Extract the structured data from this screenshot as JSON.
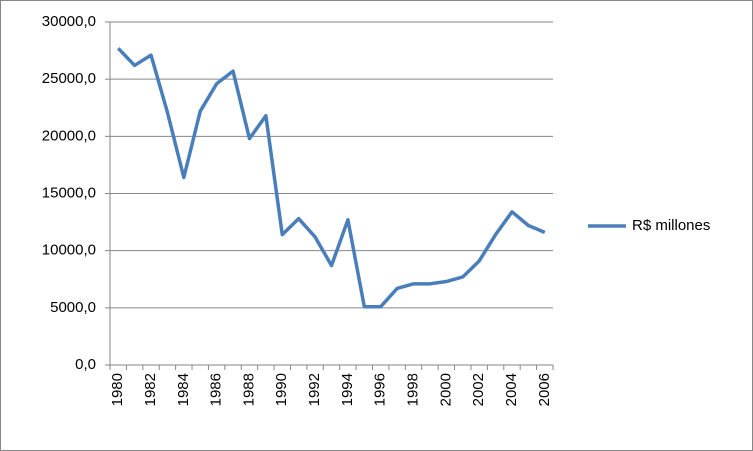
{
  "chart_data": {
    "type": "line",
    "categories": [
      "1980",
      null,
      "1982",
      null,
      "1984",
      null,
      "1986",
      null,
      "1988",
      null,
      "1990",
      null,
      "1992",
      null,
      "1994",
      null,
      "1996",
      null,
      "1998",
      null,
      "2000",
      null,
      "2002",
      null,
      "2004",
      null,
      "2006"
    ],
    "series": [
      {
        "name": "R$ millones",
        "color": "#4a7ebb",
        "values": [
          27700,
          26200,
          27100,
          22100,
          16400,
          22200,
          24600,
          25700,
          19800,
          21800,
          11400,
          12800,
          11200,
          8700,
          12700,
          5100,
          5100,
          6700,
          7100,
          7100,
          7300,
          7700,
          9100,
          11400,
          13400,
          12200,
          11600
        ]
      }
    ],
    "ylim": [
      0,
      30000
    ],
    "yticks": [
      {
        "value": 0,
        "label": "0,0"
      },
      {
        "value": 5000,
        "label": "5000,0"
      },
      {
        "value": 10000,
        "label": "10000,0"
      },
      {
        "value": 15000,
        "label": "15000,0"
      },
      {
        "value": 20000,
        "label": "20000,0"
      },
      {
        "value": 25000,
        "label": "25000,0"
      },
      {
        "value": 30000,
        "label": "30000,0"
      }
    ],
    "grid": true,
    "legend": "right"
  }
}
